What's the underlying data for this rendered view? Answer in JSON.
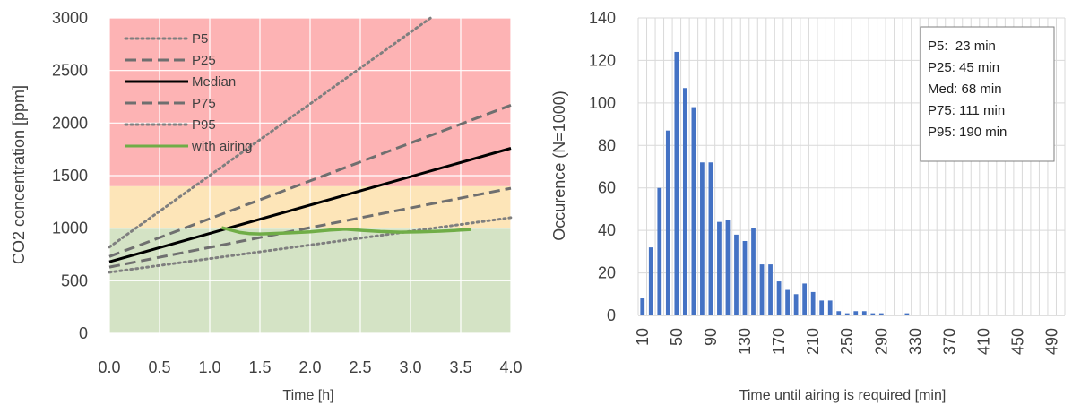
{
  "chart_data": [
    {
      "type": "line",
      "xlabel": "Time [h]",
      "ylabel": "CO2 concentration [ppm]",
      "xlim": [
        0,
        4
      ],
      "ylim": [
        0,
        3000
      ],
      "x_ticks": [
        "0.0",
        "0.5",
        "1.0",
        "1.5",
        "2.0",
        "2.5",
        "3.0",
        "3.5",
        "4.0"
      ],
      "y_ticks": [
        "0",
        "500",
        "1000",
        "1500",
        "2000",
        "2500",
        "3000"
      ],
      "grid": true,
      "legend_position": "top-left",
      "background_bands": [
        {
          "from": 0,
          "to": 1000,
          "color": "#d4e3c5"
        },
        {
          "from": 1000,
          "to": 1400,
          "color": "#fde5b8"
        },
        {
          "from": 1400,
          "to": 3000,
          "color": "#fdb3b4"
        }
      ],
      "series": [
        {
          "name": "P5",
          "style": "dotted",
          "color": "#7f7f7f",
          "x": [
            0,
            3.2
          ],
          "y": [
            820,
            3000
          ]
        },
        {
          "name": "P25",
          "style": "dashed",
          "color": "#6f6f6f",
          "x": [
            0,
            4
          ],
          "y": [
            730,
            2170
          ]
        },
        {
          "name": "Median",
          "style": "solid",
          "color": "#000000",
          "x": [
            0,
            4
          ],
          "y": [
            680,
            1760
          ]
        },
        {
          "name": "P75",
          "style": "dashed",
          "color": "#6f6f6f",
          "x": [
            0,
            4
          ],
          "y": [
            630,
            1380
          ]
        },
        {
          "name": "P95",
          "style": "dotted",
          "color": "#7f7f7f",
          "x": [
            0,
            4
          ],
          "y": [
            580,
            1100
          ]
        },
        {
          "name": "with airing",
          "style": "solid",
          "color": "#70ad47",
          "x": [
            1.12,
            1.2,
            1.3,
            1.4,
            1.5,
            1.6,
            1.8,
            2.0,
            2.2,
            2.35,
            2.5,
            2.7,
            2.9,
            3.1,
            3.3,
            3.5,
            3.6
          ],
          "y": [
            1005,
            985,
            960,
            948,
            945,
            948,
            955,
            965,
            982,
            990,
            980,
            968,
            962,
            965,
            972,
            982,
            988
          ]
        }
      ]
    },
    {
      "type": "bar",
      "xlabel": "Time until airing is required [min]",
      "ylabel": "Occurence (N=1000)",
      "ylim": [
        0,
        140
      ],
      "y_ticks": [
        "0",
        "20",
        "40",
        "60",
        "80",
        "100",
        "120",
        "140"
      ],
      "x_tick_labels": [
        "10",
        "50",
        "90",
        "130",
        "170",
        "210",
        "250",
        "290",
        "330",
        "370",
        "410",
        "450",
        "490"
      ],
      "bar_color": "#4472c4",
      "grid": true,
      "categories": [
        10,
        20,
        30,
        40,
        50,
        60,
        70,
        80,
        90,
        100,
        110,
        120,
        130,
        140,
        150,
        160,
        170,
        180,
        190,
        200,
        210,
        220,
        230,
        240,
        250,
        260,
        270,
        280,
        290,
        300,
        310,
        320,
        330,
        340,
        350,
        360,
        370,
        380,
        390,
        400,
        410,
        420,
        430,
        440,
        450,
        460,
        470,
        480,
        490,
        500
      ],
      "values": [
        8,
        32,
        60,
        87,
        124,
        107,
        98,
        72,
        72,
        44,
        45,
        38,
        35,
        41,
        24,
        24,
        16,
        12,
        10,
        15,
        11,
        7,
        7,
        2,
        1,
        2,
        2,
        1,
        1,
        0,
        0,
        1,
        0,
        0,
        0,
        0,
        0,
        0,
        0,
        0,
        0,
        0,
        0,
        0,
        0,
        0,
        0,
        0,
        0,
        0
      ],
      "stats_box": [
        "P5:  23 min",
        "P25: 45 min",
        "Med: 68 min",
        "P75: 111 min",
        "P95: 190 min"
      ]
    }
  ]
}
